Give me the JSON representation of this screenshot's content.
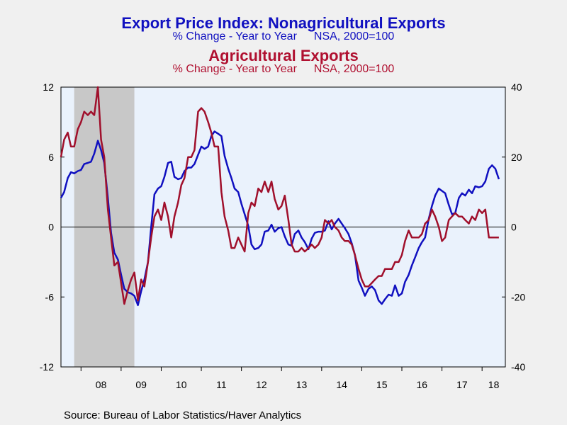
{
  "titles": {
    "line1": "Export Price Index: Nonagricultural Exports",
    "line2a": "% Change - Year to Year",
    "line2b": "NSA, 2000=100",
    "line3": "Agricultural Exports",
    "line4a": "% Change - Year to Year",
    "line4b": "NSA, 2000=100"
  },
  "source": "Source:  Bureau of Labor Statistics/Haver Analytics",
  "colors": {
    "nonag": "#1010c0",
    "ag": "#a0102c",
    "plot_bg": "#eaf2fc",
    "recession": "#c8c8c8"
  },
  "chart_data": {
    "type": "line",
    "title": "Export Price Index: Nonagricultural Exports / Agricultural Exports",
    "x_tick_labels": [
      "08",
      "09",
      "10",
      "11",
      "12",
      "13",
      "14",
      "15",
      "16",
      "17",
      "18"
    ],
    "x_range": [
      2007.5,
      2018.58
    ],
    "y_left": {
      "range": [
        -12,
        12
      ],
      "ticks": [
        12,
        6,
        0,
        -6,
        -12
      ]
    },
    "y_right": {
      "range": [
        -40,
        40
      ],
      "ticks": [
        40,
        20,
        0,
        -20,
        -40
      ]
    },
    "recession": [
      2007.83,
      2009.33
    ],
    "grid": false,
    "zero_line": true,
    "series": [
      {
        "name": "Nonagricultural Exports",
        "axis": "left",
        "color": "#1010c0",
        "points": [
          [
            2007.5,
            2.5
          ],
          [
            2007.58,
            3.0
          ],
          [
            2007.67,
            4.2
          ],
          [
            2007.75,
            4.7
          ],
          [
            2007.83,
            4.6
          ],
          [
            2007.92,
            4.8
          ],
          [
            2008.0,
            4.9
          ],
          [
            2008.08,
            5.4
          ],
          [
            2008.17,
            5.5
          ],
          [
            2008.25,
            5.6
          ],
          [
            2008.33,
            6.3
          ],
          [
            2008.42,
            7.4
          ],
          [
            2008.5,
            6.6
          ],
          [
            2008.58,
            5.5
          ],
          [
            2008.67,
            2.5
          ],
          [
            2008.75,
            -0.5
          ],
          [
            2008.83,
            -2.2
          ],
          [
            2008.92,
            -2.8
          ],
          [
            2009.0,
            -4.1
          ],
          [
            2009.08,
            -5.3
          ],
          [
            2009.17,
            -5.6
          ],
          [
            2009.25,
            -5.7
          ],
          [
            2009.33,
            -5.9
          ],
          [
            2009.42,
            -6.7
          ],
          [
            2009.5,
            -5.5
          ],
          [
            2009.58,
            -4.5
          ],
          [
            2009.67,
            -3.0
          ],
          [
            2009.75,
            0.0
          ],
          [
            2009.83,
            2.8
          ],
          [
            2009.92,
            3.3
          ],
          [
            2010.0,
            3.5
          ],
          [
            2010.08,
            4.3
          ],
          [
            2010.17,
            5.5
          ],
          [
            2010.25,
            5.6
          ],
          [
            2010.33,
            4.3
          ],
          [
            2010.42,
            4.1
          ],
          [
            2010.5,
            4.2
          ],
          [
            2010.58,
            4.8
          ],
          [
            2010.67,
            5.1
          ],
          [
            2010.75,
            5.1
          ],
          [
            2010.83,
            5.4
          ],
          [
            2010.92,
            6.2
          ],
          [
            2011.0,
            6.9
          ],
          [
            2011.08,
            6.7
          ],
          [
            2011.17,
            6.9
          ],
          [
            2011.25,
            7.8
          ],
          [
            2011.33,
            8.2
          ],
          [
            2011.42,
            8.0
          ],
          [
            2011.5,
            7.8
          ],
          [
            2011.58,
            6.1
          ],
          [
            2011.67,
            5.0
          ],
          [
            2011.75,
            4.2
          ],
          [
            2011.83,
            3.3
          ],
          [
            2011.92,
            3.0
          ],
          [
            2012.0,
            2.0
          ],
          [
            2012.08,
            1.1
          ],
          [
            2012.17,
            0.1
          ],
          [
            2012.25,
            -1.5
          ],
          [
            2012.33,
            -1.9
          ],
          [
            2012.42,
            -1.8
          ],
          [
            2012.5,
            -1.5
          ],
          [
            2012.58,
            -0.4
          ],
          [
            2012.67,
            -0.3
          ],
          [
            2012.75,
            0.2
          ],
          [
            2012.83,
            -0.4
          ],
          [
            2012.92,
            -0.1
          ],
          [
            2013.0,
            0.0
          ],
          [
            2013.08,
            -0.8
          ],
          [
            2013.17,
            -1.5
          ],
          [
            2013.25,
            -1.6
          ],
          [
            2013.33,
            -0.6
          ],
          [
            2013.42,
            -0.3
          ],
          [
            2013.5,
            -0.9
          ],
          [
            2013.58,
            -1.3
          ],
          [
            2013.67,
            -1.9
          ],
          [
            2013.75,
            -1.0
          ],
          [
            2013.83,
            -0.5
          ],
          [
            2013.92,
            -0.4
          ],
          [
            2014.0,
            -0.4
          ],
          [
            2014.08,
            -0.3
          ],
          [
            2014.17,
            0.5
          ],
          [
            2014.25,
            -0.2
          ],
          [
            2014.33,
            0.3
          ],
          [
            2014.42,
            0.7
          ],
          [
            2014.5,
            0.3
          ],
          [
            2014.58,
            -0.1
          ],
          [
            2014.67,
            -0.6
          ],
          [
            2014.75,
            -1.4
          ],
          [
            2014.83,
            -2.4
          ],
          [
            2014.92,
            -4.6
          ],
          [
            2015.0,
            -5.2
          ],
          [
            2015.08,
            -5.9
          ],
          [
            2015.17,
            -5.3
          ],
          [
            2015.25,
            -5.1
          ],
          [
            2015.33,
            -5.4
          ],
          [
            2015.42,
            -6.3
          ],
          [
            2015.5,
            -6.6
          ],
          [
            2015.58,
            -6.2
          ],
          [
            2015.67,
            -5.8
          ],
          [
            2015.75,
            -5.9
          ],
          [
            2015.83,
            -5.0
          ],
          [
            2015.92,
            -5.9
          ],
          [
            2016.0,
            -5.7
          ],
          [
            2016.08,
            -4.7
          ],
          [
            2016.17,
            -4.1
          ],
          [
            2016.25,
            -3.3
          ],
          [
            2016.33,
            -2.6
          ],
          [
            2016.42,
            -1.8
          ],
          [
            2016.5,
            -1.3
          ],
          [
            2016.58,
            -0.9
          ],
          [
            2016.67,
            0.7
          ],
          [
            2016.75,
            1.8
          ],
          [
            2016.83,
            2.7
          ],
          [
            2016.92,
            3.3
          ],
          [
            2017.0,
            3.1
          ],
          [
            2017.08,
            2.9
          ],
          [
            2017.17,
            1.9
          ],
          [
            2017.25,
            1.1
          ],
          [
            2017.33,
            1.2
          ],
          [
            2017.42,
            2.5
          ],
          [
            2017.5,
            2.9
          ],
          [
            2017.58,
            2.7
          ],
          [
            2017.67,
            3.2
          ],
          [
            2017.75,
            2.9
          ],
          [
            2017.83,
            3.5
          ],
          [
            2017.92,
            3.4
          ],
          [
            2018.0,
            3.5
          ],
          [
            2018.08,
            3.9
          ],
          [
            2018.17,
            5.0
          ],
          [
            2018.25,
            5.3
          ],
          [
            2018.33,
            5.0
          ],
          [
            2018.42,
            4.1
          ]
        ]
      },
      {
        "name": "Agricultural Exports",
        "axis": "right",
        "color": "#a0102c",
        "points": [
          [
            2007.5,
            20
          ],
          [
            2007.58,
            25
          ],
          [
            2007.67,
            27
          ],
          [
            2007.75,
            23
          ],
          [
            2007.83,
            23
          ],
          [
            2007.92,
            28
          ],
          [
            2008.0,
            30
          ],
          [
            2008.08,
            33
          ],
          [
            2008.17,
            32
          ],
          [
            2008.25,
            33
          ],
          [
            2008.33,
            32
          ],
          [
            2008.42,
            40
          ],
          [
            2008.5,
            25
          ],
          [
            2008.58,
            20
          ],
          [
            2008.67,
            5
          ],
          [
            2008.75,
            -3
          ],
          [
            2008.83,
            -11
          ],
          [
            2008.92,
            -10
          ],
          [
            2009.0,
            -16
          ],
          [
            2009.08,
            -22
          ],
          [
            2009.17,
            -18
          ],
          [
            2009.25,
            -15
          ],
          [
            2009.33,
            -13
          ],
          [
            2009.42,
            -21
          ],
          [
            2009.5,
            -15
          ],
          [
            2009.58,
            -17
          ],
          [
            2009.67,
            -10
          ],
          [
            2009.75,
            -3
          ],
          [
            2009.83,
            3
          ],
          [
            2009.92,
            5
          ],
          [
            2010.0,
            2
          ],
          [
            2010.08,
            7
          ],
          [
            2010.17,
            3
          ],
          [
            2010.25,
            -3
          ],
          [
            2010.33,
            3
          ],
          [
            2010.42,
            7
          ],
          [
            2010.5,
            12
          ],
          [
            2010.58,
            14
          ],
          [
            2010.67,
            20
          ],
          [
            2010.75,
            20
          ],
          [
            2010.83,
            22
          ],
          [
            2010.92,
            33
          ],
          [
            2011.0,
            34
          ],
          [
            2011.08,
            33
          ],
          [
            2011.17,
            30
          ],
          [
            2011.25,
            27
          ],
          [
            2011.33,
            23
          ],
          [
            2011.42,
            23
          ],
          [
            2011.5,
            10
          ],
          [
            2011.58,
            3
          ],
          [
            2011.67,
            -1
          ],
          [
            2011.75,
            -6
          ],
          [
            2011.83,
            -6
          ],
          [
            2011.92,
            -3
          ],
          [
            2012.0,
            -5
          ],
          [
            2012.08,
            -7
          ],
          [
            2012.17,
            4
          ],
          [
            2012.25,
            7
          ],
          [
            2012.33,
            6
          ],
          [
            2012.42,
            11
          ],
          [
            2012.5,
            10
          ],
          [
            2012.58,
            13
          ],
          [
            2012.67,
            10
          ],
          [
            2012.75,
            13
          ],
          [
            2012.83,
            8
          ],
          [
            2012.92,
            5
          ],
          [
            2013.0,
            6
          ],
          [
            2013.08,
            9
          ],
          [
            2013.17,
            2
          ],
          [
            2013.25,
            -5
          ],
          [
            2013.33,
            -7
          ],
          [
            2013.42,
            -7
          ],
          [
            2013.5,
            -6
          ],
          [
            2013.58,
            -7
          ],
          [
            2013.67,
            -6
          ],
          [
            2013.75,
            -5
          ],
          [
            2013.83,
            -6
          ],
          [
            2013.92,
            -5
          ],
          [
            2014.0,
            -3
          ],
          [
            2014.08,
            2
          ],
          [
            2014.17,
            1
          ],
          [
            2014.25,
            2
          ],
          [
            2014.33,
            0
          ],
          [
            2014.42,
            -1
          ],
          [
            2014.5,
            -3
          ],
          [
            2014.58,
            -4
          ],
          [
            2014.67,
            -4
          ],
          [
            2014.75,
            -5
          ],
          [
            2014.83,
            -8
          ],
          [
            2014.92,
            -12
          ],
          [
            2015.0,
            -15
          ],
          [
            2015.08,
            -17
          ],
          [
            2015.17,
            -17
          ],
          [
            2015.25,
            -16
          ],
          [
            2015.33,
            -15
          ],
          [
            2015.42,
            -14
          ],
          [
            2015.5,
            -14
          ],
          [
            2015.58,
            -12
          ],
          [
            2015.67,
            -12
          ],
          [
            2015.75,
            -12
          ],
          [
            2015.83,
            -10
          ],
          [
            2015.92,
            -10
          ],
          [
            2016.0,
            -8
          ],
          [
            2016.08,
            -4
          ],
          [
            2016.17,
            -1
          ],
          [
            2016.25,
            -3
          ],
          [
            2016.33,
            -3
          ],
          [
            2016.42,
            -3
          ],
          [
            2016.5,
            -2
          ],
          [
            2016.58,
            1
          ],
          [
            2016.67,
            2
          ],
          [
            2016.75,
            5
          ],
          [
            2016.83,
            3
          ],
          [
            2016.92,
            0
          ],
          [
            2017.0,
            -4
          ],
          [
            2017.08,
            -3
          ],
          [
            2017.17,
            2
          ],
          [
            2017.25,
            3
          ],
          [
            2017.33,
            4
          ],
          [
            2017.42,
            3
          ],
          [
            2017.5,
            3
          ],
          [
            2017.58,
            2
          ],
          [
            2017.67,
            1
          ],
          [
            2017.75,
            3
          ],
          [
            2017.83,
            2
          ],
          [
            2017.92,
            5
          ],
          [
            2018.0,
            4
          ],
          [
            2018.08,
            5
          ],
          [
            2018.17,
            -3
          ],
          [
            2018.25,
            -3
          ],
          [
            2018.33,
            -3
          ],
          [
            2018.42,
            -3
          ]
        ]
      }
    ]
  }
}
